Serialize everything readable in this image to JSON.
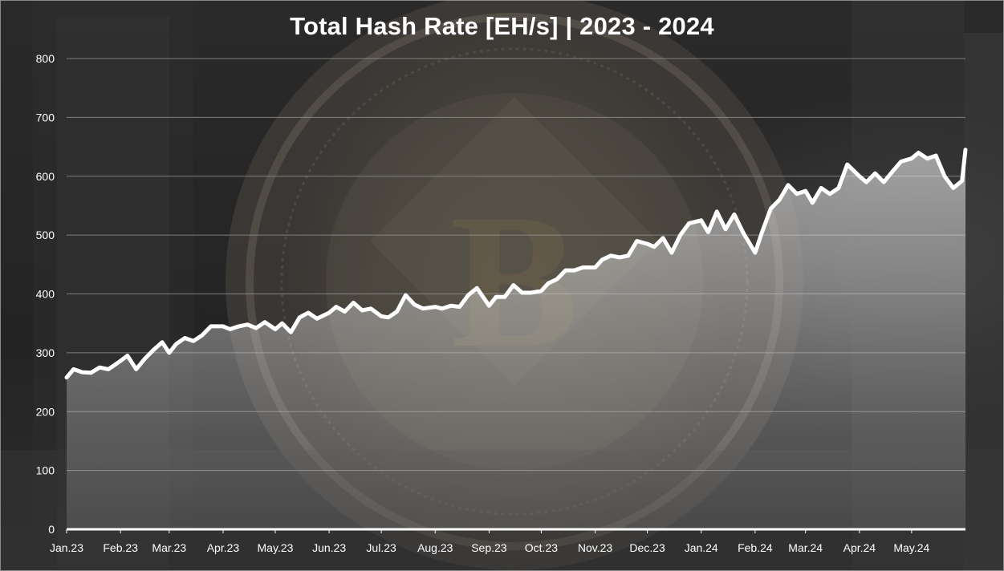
{
  "chart_data": {
    "type": "area",
    "title": "Total Hash Rate [EH/s] | 2023 - 2024",
    "xlabel": "",
    "ylabel": "",
    "ylim": [
      0,
      800
    ],
    "yticks": [
      "0",
      "100",
      "200",
      "300",
      "400",
      "500",
      "600",
      "700",
      "800"
    ],
    "xtick_labels": [
      "Jan.23",
      "Feb.23",
      "Mar.23",
      "Apr.23",
      "May.23",
      "Jun.23",
      "Jul.23",
      "Aug.23",
      "Sep.23",
      "Oct.23",
      "Nov.23",
      "Dec.23",
      "Jan.24",
      "Feb.24",
      "Mar.24",
      "Apr.24",
      "May.24"
    ],
    "grid": true,
    "legend": "none",
    "line_color": "#ffffff",
    "fill_color": "#d8d8d8",
    "series": [
      {
        "x": [
          "2023-01-01",
          "2023-01-05",
          "2023-01-10",
          "2023-01-15",
          "2023-01-20",
          "2023-01-25",
          "2023-01-31",
          "2023-02-05",
          "2023-02-10",
          "2023-02-15",
          "2023-02-20",
          "2023-02-25",
          "2023-03-01",
          "2023-03-05",
          "2023-03-10",
          "2023-03-15",
          "2023-03-20",
          "2023-03-25",
          "2023-04-01",
          "2023-04-05",
          "2023-04-10",
          "2023-04-15",
          "2023-04-20",
          "2023-04-25",
          "2023-05-01",
          "2023-05-05",
          "2023-05-10",
          "2023-05-15",
          "2023-05-20",
          "2023-05-25",
          "2023-06-01",
          "2023-06-05",
          "2023-06-10",
          "2023-06-15",
          "2023-06-20",
          "2023-06-25",
          "2023-07-01",
          "2023-07-05",
          "2023-07-10",
          "2023-07-15",
          "2023-07-20",
          "2023-07-25",
          "2023-08-01",
          "2023-08-05",
          "2023-08-10",
          "2023-08-15",
          "2023-08-20",
          "2023-08-25",
          "2023-09-01",
          "2023-09-05",
          "2023-09-10",
          "2023-09-15",
          "2023-09-20",
          "2023-09-25",
          "2023-10-01",
          "2023-10-05",
          "2023-10-10",
          "2023-10-15",
          "2023-10-20",
          "2023-10-25",
          "2023-11-01",
          "2023-11-05",
          "2023-11-10",
          "2023-11-15",
          "2023-11-20",
          "2023-11-25",
          "2023-12-01",
          "2023-12-05",
          "2023-12-10",
          "2023-12-15",
          "2023-12-20",
          "2023-12-25",
          "2024-01-01",
          "2024-01-05",
          "2024-01-10",
          "2024-01-15",
          "2024-01-20",
          "2024-01-25",
          "2024-02-01",
          "2024-02-05",
          "2024-02-10",
          "2024-02-15",
          "2024-02-20",
          "2024-02-25",
          "2024-03-01",
          "2024-03-05",
          "2024-03-10",
          "2024-03-15",
          "2024-03-20",
          "2024-03-25",
          "2024-04-01",
          "2024-04-05",
          "2024-04-10",
          "2024-04-15",
          "2024-04-20",
          "2024-04-25",
          "2024-05-01",
          "2024-05-05",
          "2024-05-10",
          "2024-05-15",
          "2024-05-20",
          "2024-05-25",
          "2024-05-30",
          "2024-06-01"
        ],
        "values": [
          258,
          272,
          267,
          266,
          275,
          272,
          284,
          295,
          272,
          290,
          305,
          318,
          300,
          315,
          325,
          320,
          330,
          345,
          345,
          340,
          345,
          348,
          342,
          352,
          340,
          350,
          335,
          360,
          368,
          358,
          368,
          378,
          370,
          385,
          372,
          375,
          362,
          360,
          370,
          398,
          382,
          375,
          378,
          375,
          380,
          378,
          398,
          410,
          380,
          395,
          395,
          415,
          402,
          402,
          405,
          418,
          425,
          440,
          440,
          445,
          445,
          458,
          465,
          462,
          465,
          490,
          485,
          480,
          495,
          470,
          500,
          520,
          525,
          505,
          540,
          510,
          535,
          505,
          470,
          505,
          545,
          560,
          585,
          570,
          575,
          555,
          580,
          570,
          580,
          620,
          600,
          590,
          605,
          590,
          608,
          625,
          630,
          640,
          630,
          635,
          600,
          580,
          592,
          645
        ]
      }
    ]
  }
}
